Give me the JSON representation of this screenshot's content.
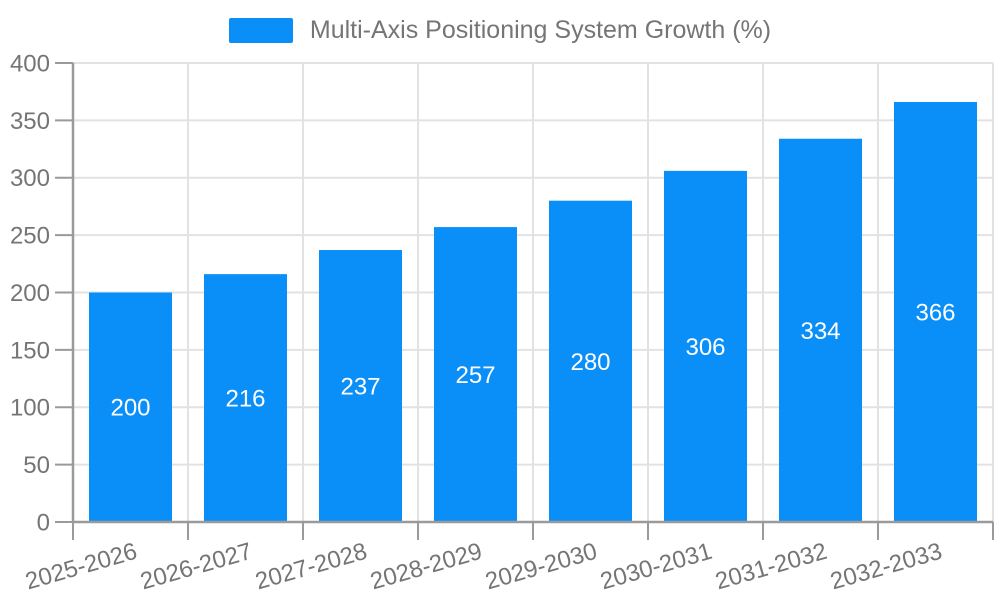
{
  "chart_data": {
    "type": "bar",
    "title": "Multi-Axis Positioning System Growth (%)",
    "legend": {
      "label": "Multi-Axis Positioning System Growth (%)",
      "position": "top-center"
    },
    "categories": [
      "2025-2026",
      "2026-2027",
      "2027-2028",
      "2028-2029",
      "2029-2030",
      "2030-2031",
      "2031-2032",
      "2032-2033"
    ],
    "series": [
      {
        "name": "Multi-Axis Positioning System Growth (%)",
        "values": [
          200,
          216,
          237,
          257,
          280,
          306,
          334,
          366
        ]
      }
    ],
    "values": [
      200,
      216,
      237,
      257,
      280,
      306,
      334,
      366
    ],
    "value_labels": [
      200,
      216,
      237,
      257,
      280,
      306,
      334,
      366
    ],
    "value_label_position": "inside-center",
    "xlabel": "",
    "ylabel": "",
    "ylim": [
      0,
      400
    ],
    "ytick_step": 50,
    "yticks": [
      0,
      50,
      100,
      150,
      200,
      250,
      300,
      350,
      400
    ],
    "grid": true,
    "x_label_rotation_deg": -16,
    "colors": {
      "bar": "#0a8ff9",
      "value_label": "#ffffff",
      "axis_line": "#9a9a9a",
      "grid_line": "#e2e2e2",
      "tick_label": "#757575",
      "legend_text": "#757575",
      "background": "#ffffff"
    }
  }
}
